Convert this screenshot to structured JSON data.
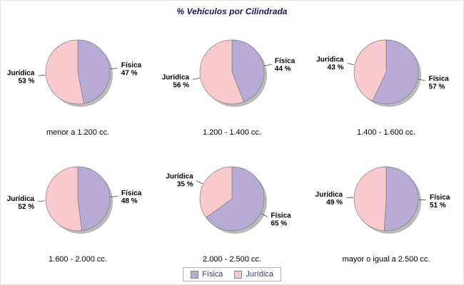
{
  "chart_data": {
    "type": "pie",
    "title": "% Vehículos por Cilindrada",
    "series_names": [
      "Física",
      "Jurídica"
    ],
    "colors": {
      "fisica": "#b7abd6",
      "juridica": "#fac9cd"
    },
    "legend_position": "bottom-center",
    "layout": "2 rows x 3 columns of pies",
    "pies": [
      {
        "category": "menor a 1.200 cc.",
        "fisica": 47,
        "juridica": 53
      },
      {
        "category": "1.200 - 1.400 cc.",
        "fisica": 44,
        "juridica": 56
      },
      {
        "category": "1.400 - 1.600 cc.",
        "fisica": 57,
        "juridica": 43
      },
      {
        "category": "1.600 - 2.000 cc.",
        "fisica": 48,
        "juridica": 52
      },
      {
        "category": "2.000 - 2.500 cc.",
        "fisica": 65,
        "juridica": 35
      },
      {
        "category": "mayor o igual a 2.500 cc.",
        "fisica": 51,
        "juridica": 49
      }
    ],
    "percent_suffix": " %"
  }
}
